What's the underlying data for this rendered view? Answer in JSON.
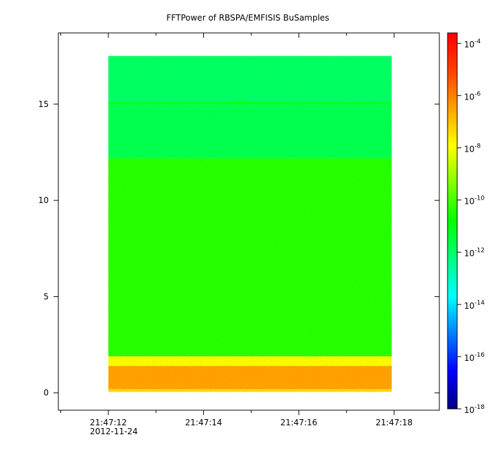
{
  "chart_data": {
    "type": "heatmap",
    "title": "FFTPower of RBSPA/EMFISIS  BuSamples",
    "xlabel": "",
    "ylabel": "",
    "x_ticks": [
      {
        "value": 12,
        "label": "21:47:12",
        "sublabel": "2012-11-24"
      },
      {
        "value": 14,
        "label": "21:47:14"
      },
      {
        "value": 16,
        "label": "21:47:16"
      },
      {
        "value": 18,
        "label": "21:47:18"
      }
    ],
    "x_minor_ticks": [
      11,
      13,
      15,
      17
    ],
    "xlim": [
      10.95,
      18.95
    ],
    "x_data_range": [
      12.0,
      17.95
    ],
    "y_ticks": [
      {
        "value": 0,
        "label": "0"
      },
      {
        "value": 5,
        "label": "5"
      },
      {
        "value": 10,
        "label": "10"
      },
      {
        "value": 15,
        "label": "15"
      }
    ],
    "ylim": [
      -0.9,
      18.7
    ],
    "y_data_range": [
      0.05,
      17.5
    ],
    "colorbar": {
      "scale": "log",
      "range": [
        -18,
        -3.6
      ],
      "ticks": [
        {
          "exp": -4,
          "base": "10",
          "sup": "-4"
        },
        {
          "exp": -6,
          "base": "10",
          "sup": "-6"
        },
        {
          "exp": -8,
          "base": "10",
          "sup": "-8"
        },
        {
          "exp": -10,
          "base": "10",
          "sup": "-10"
        },
        {
          "exp": -12,
          "base": "10",
          "sup": "-12"
        },
        {
          "exp": -14,
          "base": "10",
          "sup": "-14"
        },
        {
          "exp": -16,
          "base": "10",
          "sup": "-16"
        },
        {
          "exp": -18,
          "base": "10",
          "sup": "-18"
        }
      ],
      "colors": [
        "#00007f",
        "#0000ff",
        "#007fff",
        "#00ffff",
        "#00ff80",
        "#00ff00",
        "#80ff00",
        "#ffff00",
        "#ffa000",
        "#ff4000",
        "#ff0000"
      ]
    },
    "bands": [
      {
        "y_from": 0.05,
        "y_to": 0.2,
        "log_power": -7.4
      },
      {
        "y_from": 0.2,
        "y_to": 1.4,
        "log_power": -6.6
      },
      {
        "y_from": 1.4,
        "y_to": 1.9,
        "log_power": -8.0
      },
      {
        "y_from": 1.9,
        "y_to": 12.2,
        "log_power": -10.5
      },
      {
        "y_from": 12.2,
        "y_to": 15.0,
        "log_power": -11.8
      },
      {
        "y_from": 15.0,
        "y_to": 15.1,
        "log_power": -11.0
      },
      {
        "y_from": 15.1,
        "y_to": 17.5,
        "log_power": -12.0
      }
    ],
    "grid": false,
    "legend": "colorbar-right"
  }
}
